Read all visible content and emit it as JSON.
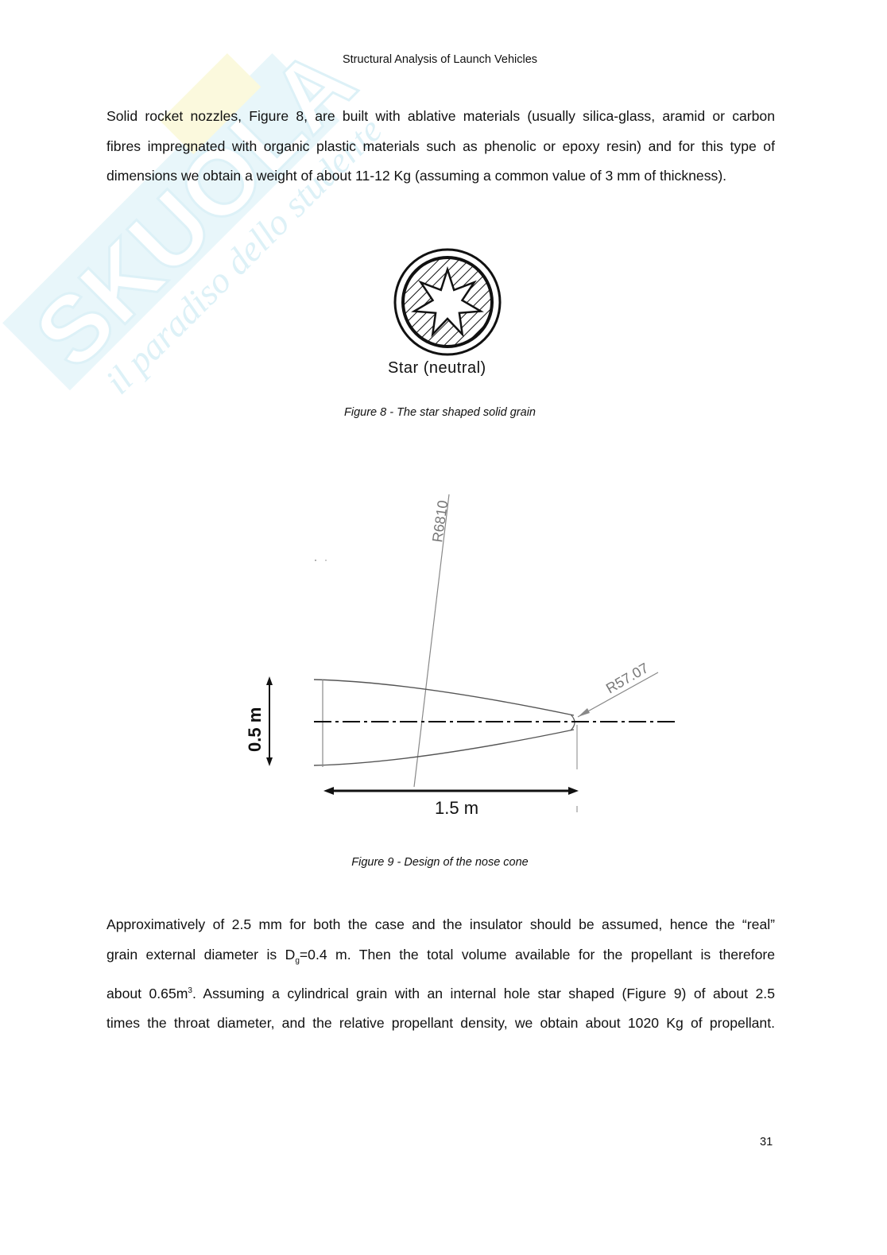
{
  "header": {
    "title": "Structural Analysis of Launch Vehicles"
  },
  "watermark": {
    "brand": "Skuola.net",
    "tagline": "il paradiso dello studente"
  },
  "paragraph1": {
    "lines": [
      "Solid rocket nozzles, Figure 8, are built with ablative materials (usually silica-glass, aramid or carbon",
      "fibres impregnated with organic plastic materials such as phenolic or epoxy resin) and for this type of",
      "dimensions we obtain a weight of about 11-12 Kg (assuming a common value of 3 mm of thickness)."
    ]
  },
  "figure8": {
    "label": "Star (neutral)",
    "caption": "Figure 8 - The star shaped solid grain"
  },
  "figure9": {
    "radius_large": "R6810",
    "radius_tip": "R57.07",
    "height_label": "0.5 m",
    "length_label": "1.5 m",
    "caption": "Figure 9 - Design of the nose cone"
  },
  "paragraph2": {
    "line1": "Approximatively of 2.5 mm for both the case and the insulator should be assumed, hence the “real”",
    "line2_a": "grain external diameter is D",
    "line2_sub": "g",
    "line2_b": "=0.4 m. Then the total volume available for the propellant is therefore",
    "line3_a": "about 0.65m",
    "line3_sup": "3",
    "line3_b": ". Assuming a cylindrical grain with an internal hole star shaped (Figure 9) of about 2.5",
    "line4": "times the throat diameter, and the relative propellant density, we obtain about 1020 Kg of propellant."
  },
  "page_number": "31"
}
